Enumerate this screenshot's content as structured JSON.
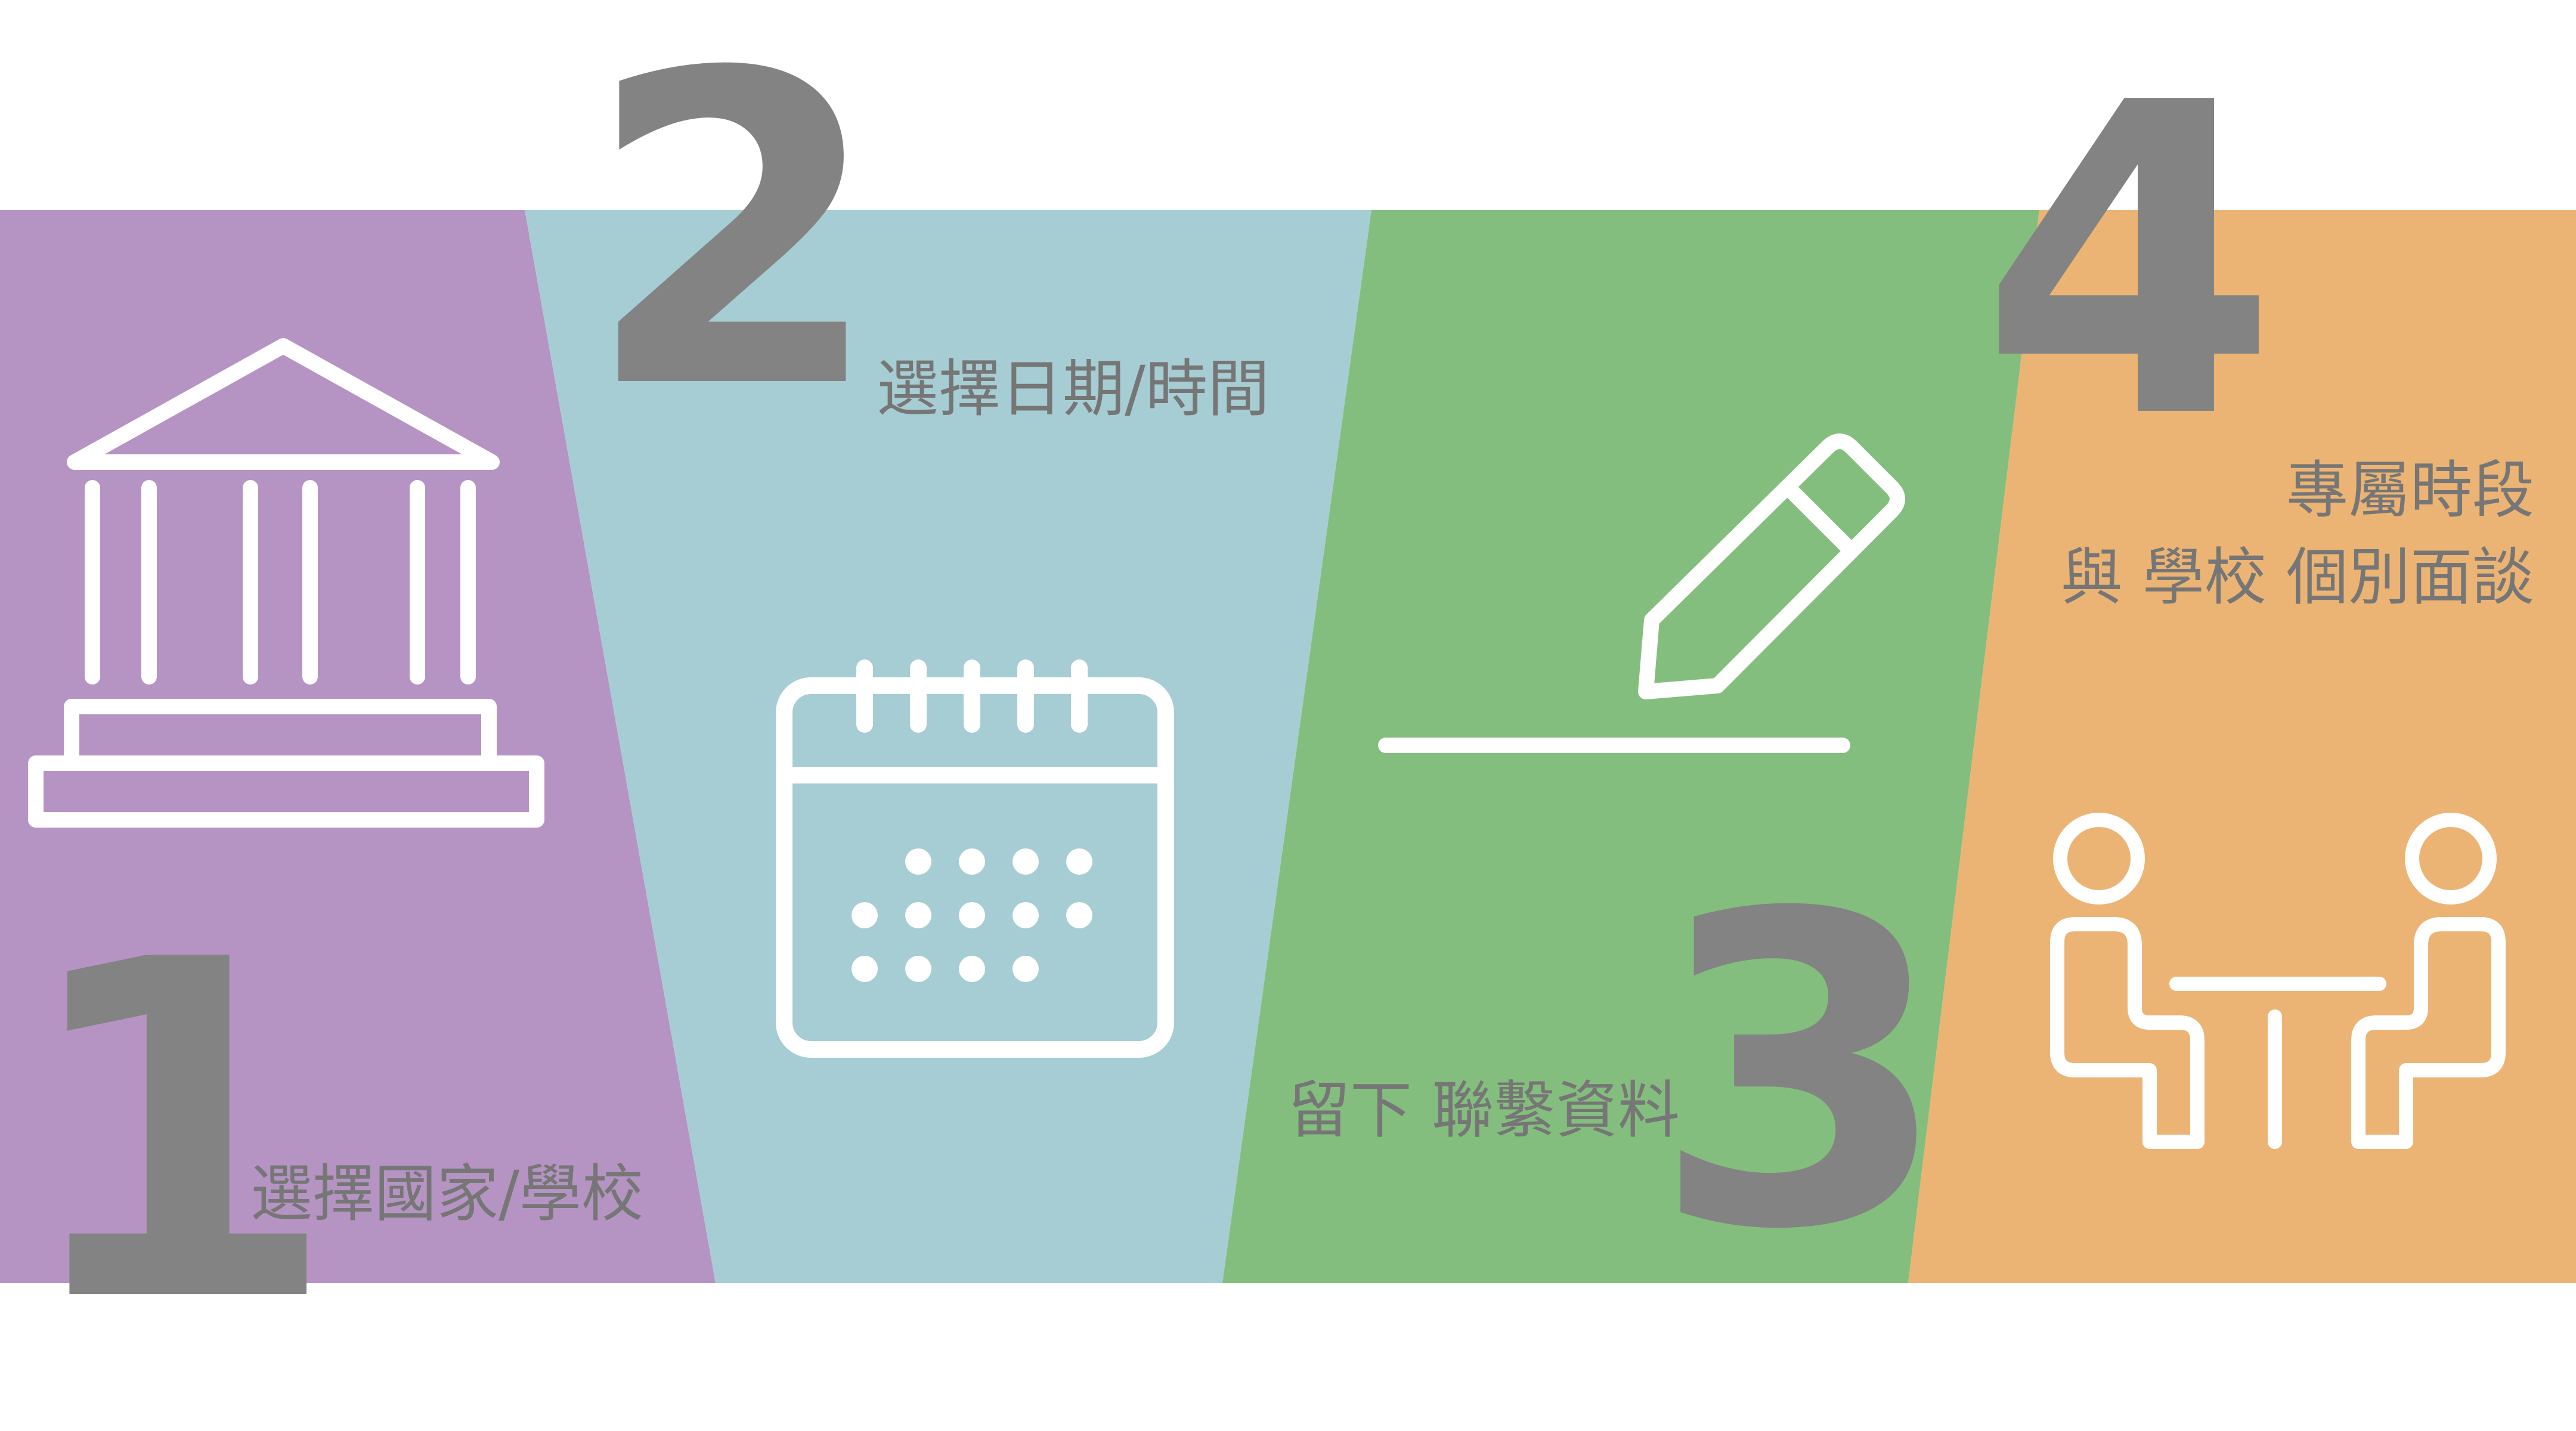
{
  "colors": {
    "background": "#ffffff",
    "step1": "#b594c3",
    "step2": "#a6cdd3",
    "step3": "#84be7e",
    "step4": "#ecb474",
    "number": "#838383",
    "label": "#767676",
    "icon_stroke": "#ffffff"
  },
  "steps": [
    {
      "number": "1",
      "label": "選擇國家/學校",
      "icon": "school-building-icon"
    },
    {
      "number": "2",
      "label": "選擇日期/時間",
      "icon": "calendar-icon"
    },
    {
      "number": "3",
      "label": "留下 聯繫資料",
      "icon": "pencil-icon"
    },
    {
      "number": "4",
      "label_lines": [
        "專屬時段",
        "與 學校 個別面談"
      ],
      "icon": "meeting-icon"
    }
  ]
}
